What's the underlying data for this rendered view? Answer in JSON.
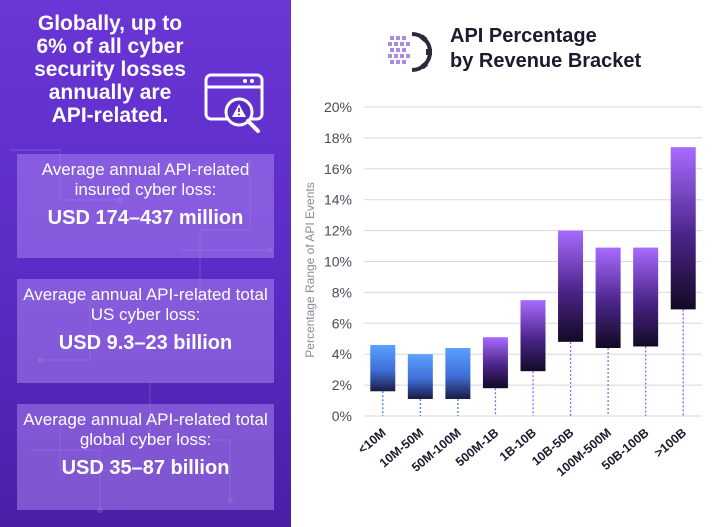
{
  "left": {
    "headline": "Globally, up to 6% of all cyber security losses annually are API-related.",
    "stats": [
      {
        "label": "Average annual API-related insured cyber loss:",
        "value": "USD 174–437 million"
      },
      {
        "label": "Average annual API-related total US cyber loss:",
        "value": "USD 9.3–23 billion"
      },
      {
        "label": "Average annual API-related total global cyber loss:",
        "value": "USD 35–87 billion"
      }
    ]
  },
  "chart_data": {
    "type": "bar",
    "title": "API Percentage by Revenue Bracket",
    "title_lines": [
      "API Percentage",
      "by Revenue Bracket"
    ],
    "ylabel": "Percentage Range  of API Events",
    "xlabel": "",
    "ylim": [
      0,
      20
    ],
    "yticks": [
      "0%",
      "2%",
      "4%",
      "6%",
      "8%",
      "10%",
      "12%",
      "14%",
      "16%",
      "18%",
      "20%"
    ],
    "categories": [
      "<10M",
      "10M-50M",
      "50M-100M",
      "500M-1B",
      "1B-10B",
      "10B-50B",
      "100M-500M",
      "50B-100B",
      ">100B"
    ],
    "series": [
      {
        "name": "low",
        "values": [
          1.6,
          1.1,
          1.1,
          1.8,
          2.9,
          4.8,
          4.4,
          4.5,
          6.9
        ]
      },
      {
        "name": "high",
        "values": [
          4.6,
          4.0,
          4.4,
          5.1,
          7.5,
          12.0,
          10.9,
          10.9,
          17.4
        ]
      }
    ],
    "bar_colors": {
      "blue_top": "#5aa0ff",
      "blue_bottom": "#1a1a44",
      "purple_top": "#a86bff",
      "purple_bottom": "#120a24"
    },
    "grid": true
  }
}
